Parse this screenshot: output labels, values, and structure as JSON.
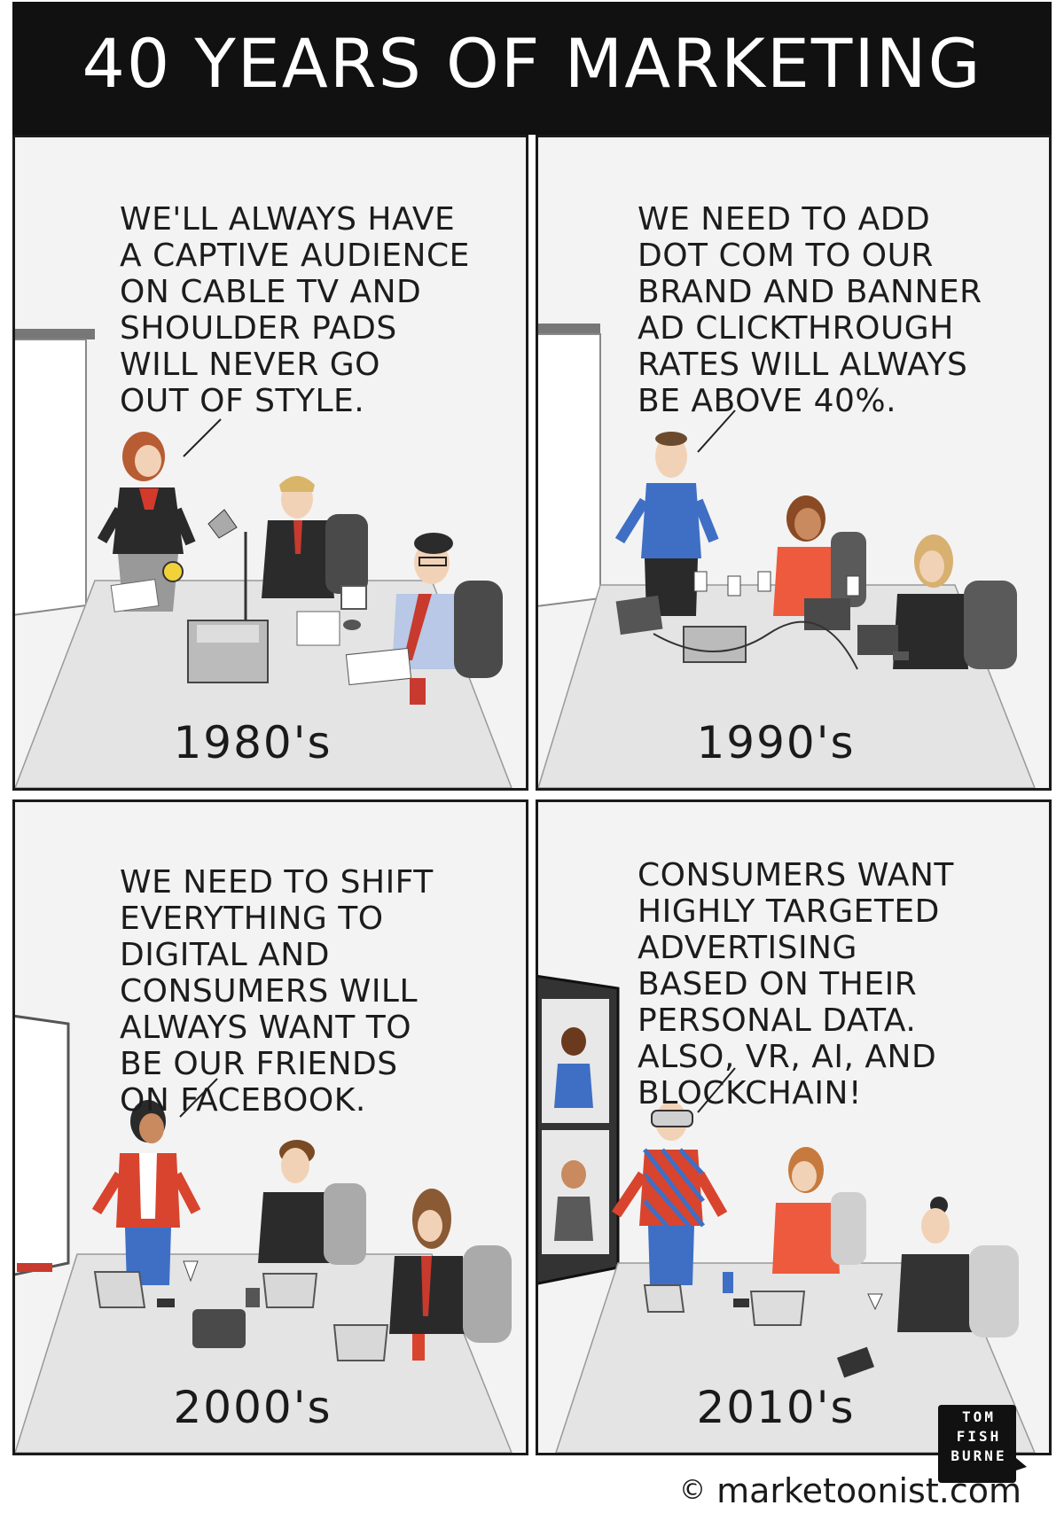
{
  "title": "40 YEARS OF MARKETING",
  "panels": [
    {
      "decade": "1980's",
      "speech": [
        "WE'LL ALWAYS HAVE",
        "A CAPTIVE AUDIENCE",
        "ON CABLE TV AND",
        "SHOULDER PADS",
        "WILL NEVER GO",
        "OUT OF STYLE."
      ]
    },
    {
      "decade": "1990's",
      "speech": [
        "WE NEED TO ADD",
        "DOT COM TO OUR",
        "BRAND AND BANNER",
        "AD CLICKTHROUGH",
        "RATES WILL ALWAYS",
        "BE ABOVE 40%."
      ]
    },
    {
      "decade": "2000's",
      "speech": [
        "WE NEED TO SHIFT",
        "EVERYTHING TO",
        "DIGITAL AND",
        "CONSUMERS WILL",
        "ALWAYS WANT TO",
        "BE OUR FRIENDS",
        "ON FACEBOOK."
      ]
    },
    {
      "decade": "2010's",
      "speech": [
        "CONSUMERS WANT",
        "HIGHLY TARGETED",
        "ADVERTISING",
        "BASED ON THEIR",
        "PERSONAL DATA.",
        "ALSO, VR, AI, AND",
        "BLOCKCHAIN!"
      ]
    }
  ],
  "signature": [
    "TOM",
    "FISH",
    "BURNE"
  ],
  "credit": {
    "symbol": "©",
    "text": "marketoonist.com"
  },
  "colors": {
    "title_bg": "#111111",
    "panel_bg": "#f3f3f3",
    "table": "#e2e2e2",
    "chair": "#4a4a4a",
    "red": "#d9442e",
    "blue": "#3f6fc4"
  }
}
